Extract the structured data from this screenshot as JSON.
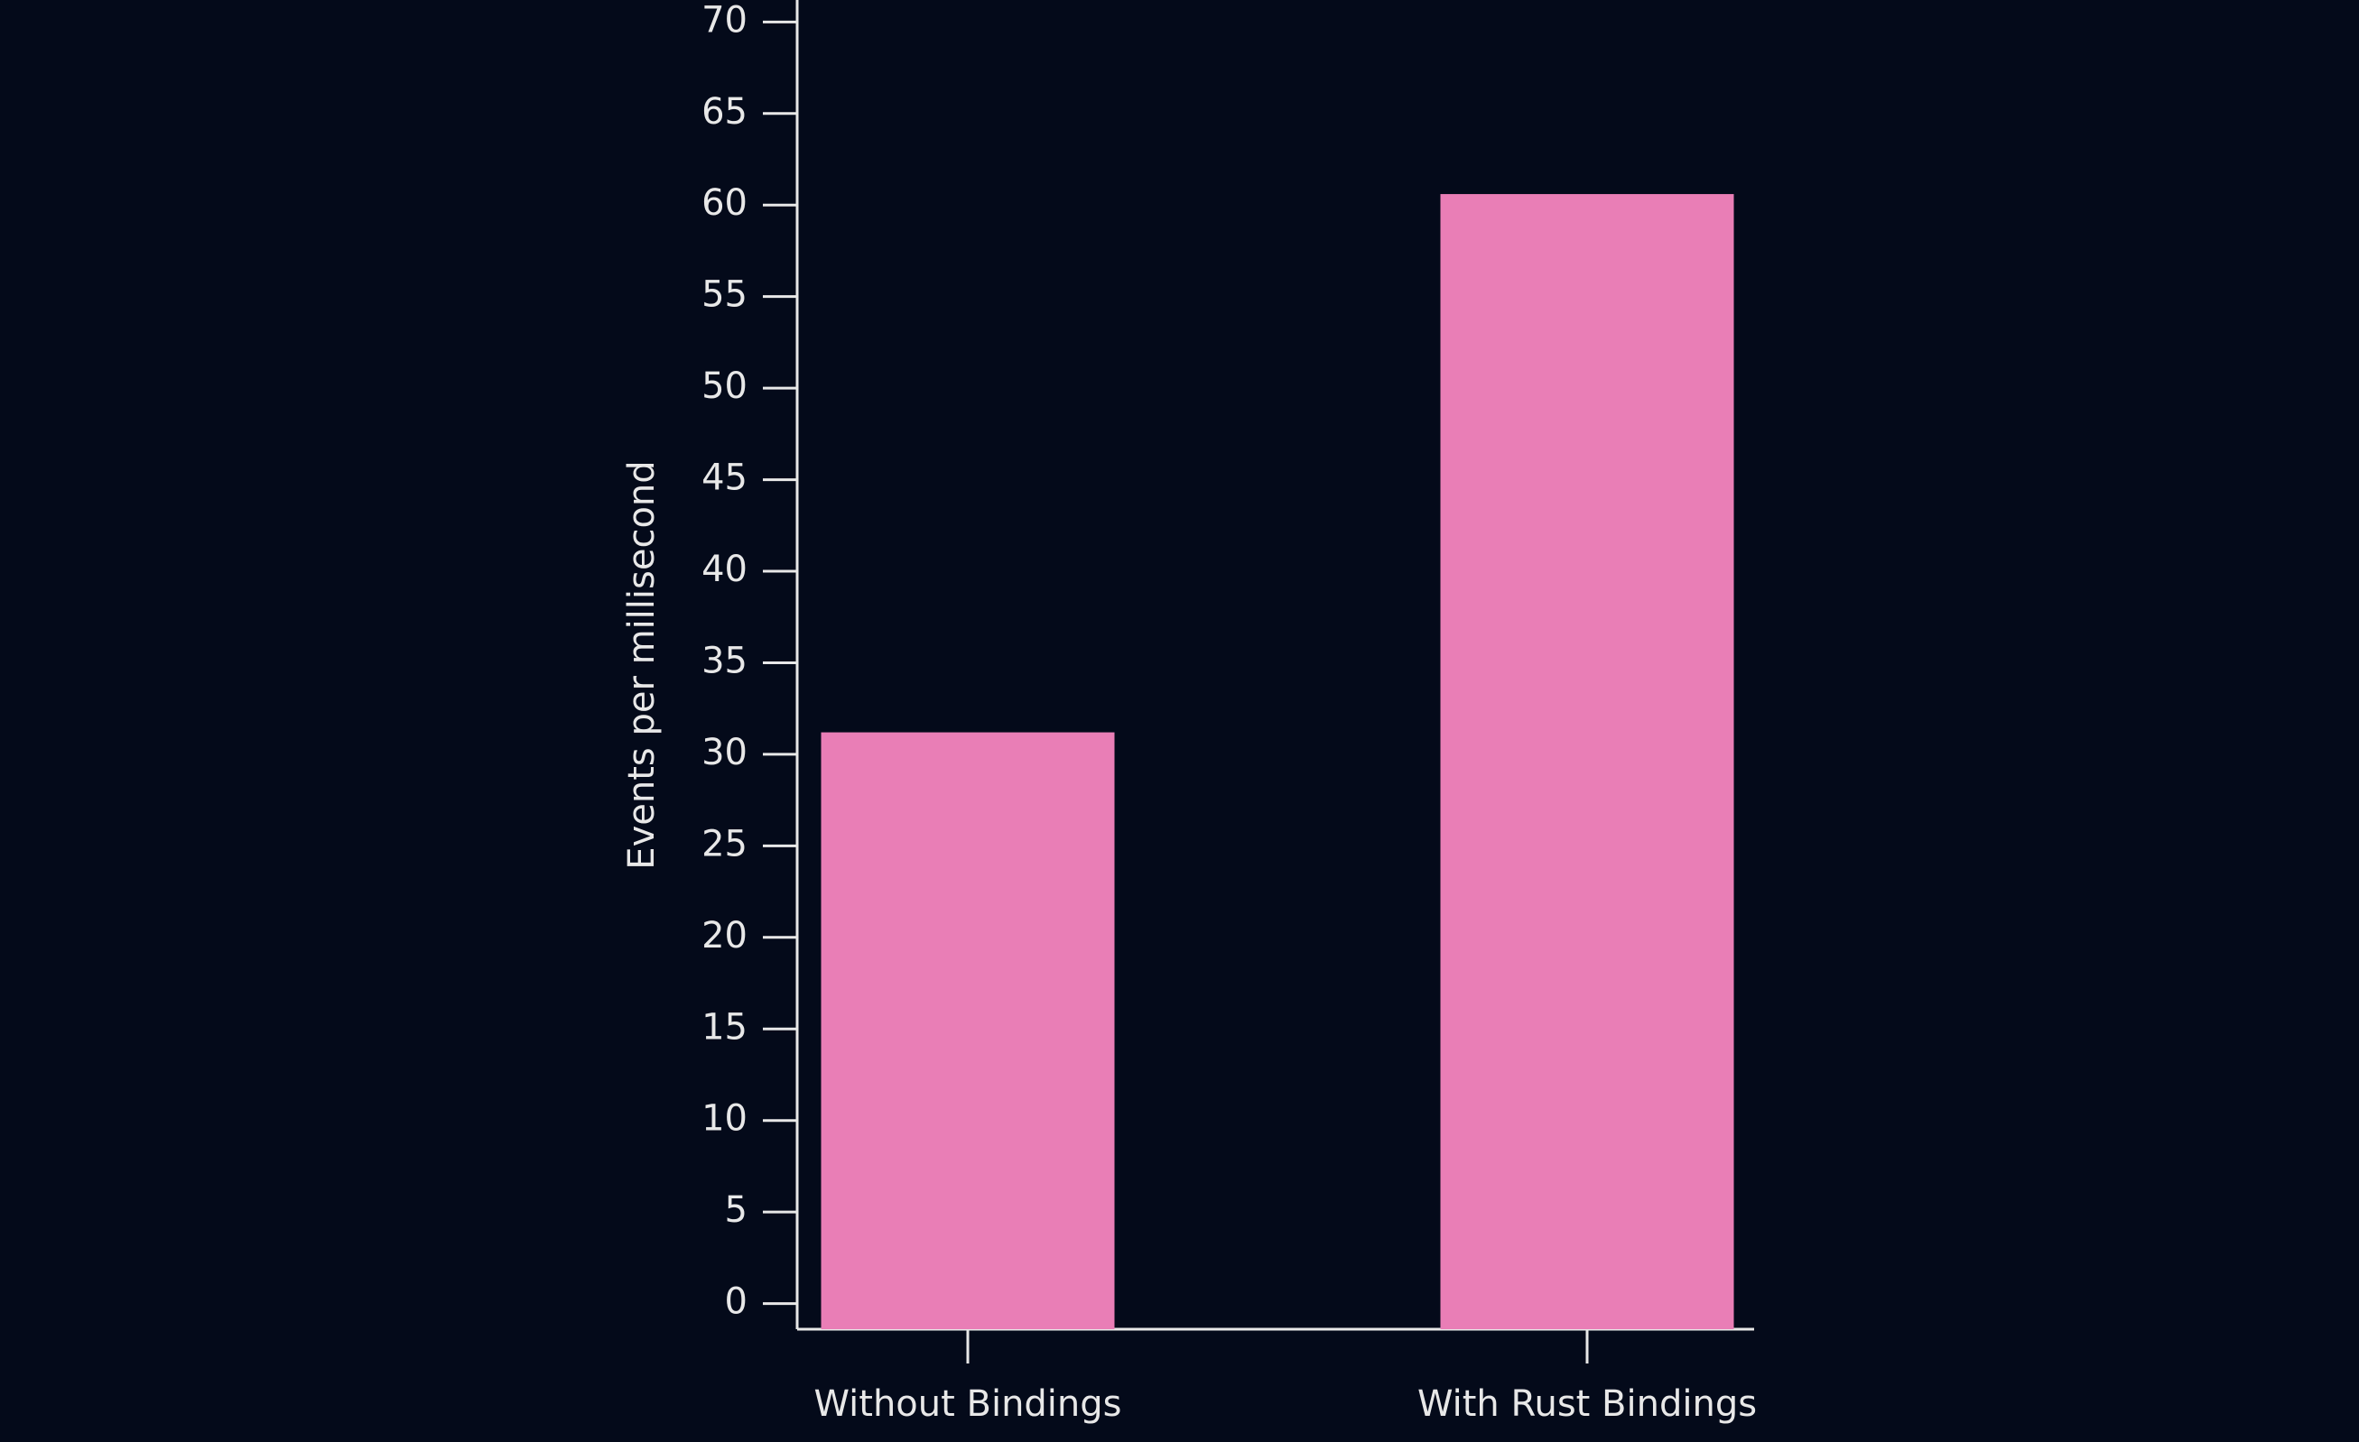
{
  "chart_data": {
    "type": "bar",
    "y_label": "Events per millisecond",
    "categories": [
      "Without Bindings",
      "With Rust Bindings"
    ],
    "values": [
      31.2,
      60.6
    ],
    "color": "#e97eb6",
    "ylim": [
      -1.4,
      71.2
    ],
    "yticks": [
      0,
      5,
      10,
      15,
      20,
      25,
      30,
      35,
      40,
      45,
      50,
      55,
      60,
      65,
      70
    ]
  }
}
